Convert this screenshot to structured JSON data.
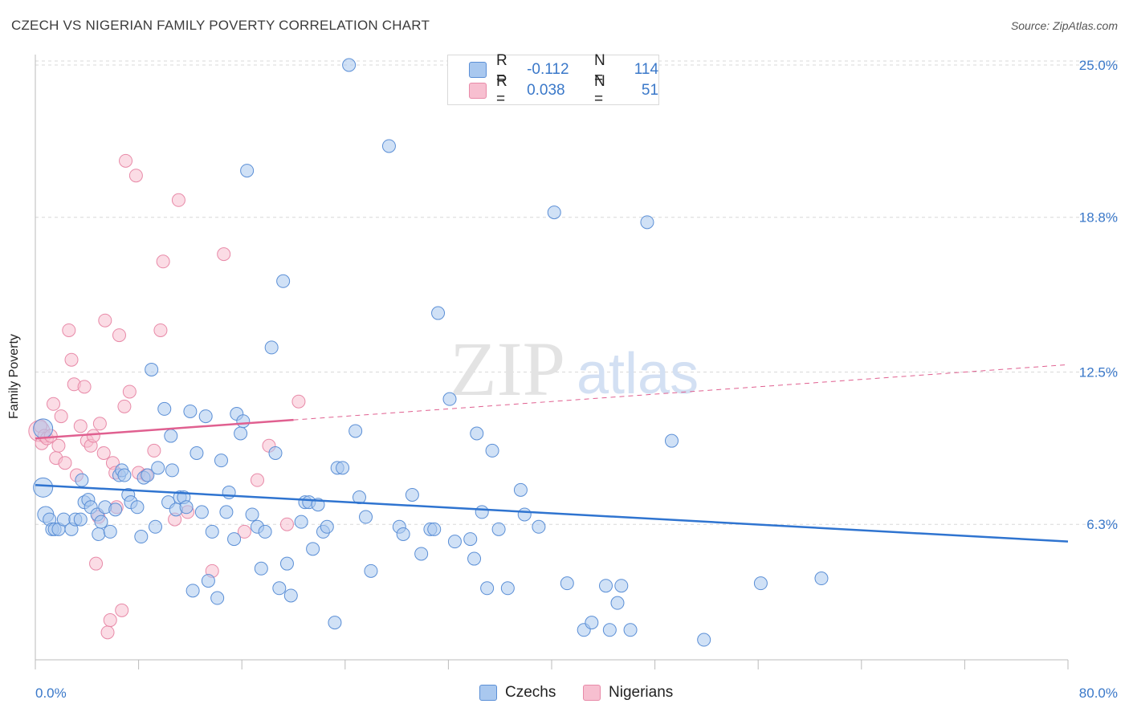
{
  "title": "CZECH VS NIGERIAN FAMILY POVERTY CORRELATION CHART",
  "source": "Source: ZipAtlas.com",
  "watermark": {
    "zip": "ZIP",
    "atlas": "atlas"
  },
  "legend": {
    "rows": [
      {
        "r_label": "R =",
        "r_value": "-0.112",
        "n_label": "N =",
        "n_value": "114"
      },
      {
        "r_label": "R =",
        "r_value": "0.038",
        "n_label": "N =",
        "n_value": "51"
      }
    ]
  },
  "bottom_legend": {
    "czechs": "Czechs",
    "nigerians": "Nigerians"
  },
  "colors": {
    "czech_fill": "#a9c8ef",
    "czech_stroke": "#5b8fd6",
    "czech_line": "#2f74d0",
    "nigerian_fill": "#f7bfd0",
    "nigerian_stroke": "#e88aa8",
    "nigerian_line": "#e06090",
    "axis_text": "#3a78c9",
    "grid": "#d9d9d9"
  },
  "chart_data": {
    "type": "scatter",
    "title": "CZECH VS NIGERIAN FAMILY POVERTY CORRELATION CHART",
    "xlabel": "",
    "ylabel": "Family Poverty",
    "xlim": [
      0,
      80
    ],
    "ylim": [
      0,
      26
    ],
    "x_tick_labels": [
      "0.0%",
      "80.0%"
    ],
    "y_ticks": [
      6.3,
      12.5,
      18.8,
      25.0
    ],
    "y_tick_labels": [
      "6.3%",
      "12.5%",
      "18.8%",
      "25.0%"
    ],
    "grid": true,
    "legend_position": "top-center",
    "series": [
      {
        "name": "Czechs",
        "trend": {
          "x": [
            0,
            80
          ],
          "y": [
            7.9,
            5.6
          ],
          "solid_until": 80
        },
        "points": [
          [
            0.6,
            10.2
          ],
          [
            0.6,
            7.8
          ],
          [
            0.8,
            6.7
          ],
          [
            1.1,
            6.5
          ],
          [
            1.3,
            6.1
          ],
          [
            1.5,
            6.1
          ],
          [
            1.8,
            6.1
          ],
          [
            2.2,
            6.5
          ],
          [
            2.8,
            6.1
          ],
          [
            3.1,
            6.5
          ],
          [
            3.5,
            6.5
          ],
          [
            3.6,
            8.1
          ],
          [
            3.8,
            7.2
          ],
          [
            4.1,
            7.3
          ],
          [
            4.3,
            7.0
          ],
          [
            4.8,
            6.7
          ],
          [
            4.9,
            5.9
          ],
          [
            5.1,
            6.4
          ],
          [
            5.4,
            7.0
          ],
          [
            5.8,
            6.0
          ],
          [
            6.2,
            6.9
          ],
          [
            6.5,
            8.3
          ],
          [
            6.7,
            8.5
          ],
          [
            6.9,
            8.3
          ],
          [
            7.2,
            7.5
          ],
          [
            7.4,
            7.2
          ],
          [
            7.9,
            7.0
          ],
          [
            8.2,
            5.8
          ],
          [
            8.4,
            8.2
          ],
          [
            8.7,
            8.3
          ],
          [
            9.0,
            12.6
          ],
          [
            9.3,
            6.2
          ],
          [
            9.5,
            8.6
          ],
          [
            10.0,
            11.0
          ],
          [
            10.3,
            7.2
          ],
          [
            10.5,
            9.9
          ],
          [
            10.6,
            8.5
          ],
          [
            10.9,
            6.9
          ],
          [
            11.2,
            7.4
          ],
          [
            11.5,
            7.4
          ],
          [
            11.7,
            7.0
          ],
          [
            12.0,
            10.9
          ],
          [
            12.2,
            3.6
          ],
          [
            12.5,
            9.2
          ],
          [
            12.9,
            6.8
          ],
          [
            13.2,
            10.7
          ],
          [
            13.4,
            4.0
          ],
          [
            13.7,
            6.0
          ],
          [
            14.1,
            3.3
          ],
          [
            14.4,
            8.9
          ],
          [
            14.8,
            6.8
          ],
          [
            15.0,
            7.6
          ],
          [
            15.4,
            5.7
          ],
          [
            15.6,
            10.8
          ],
          [
            15.9,
            10.0
          ],
          [
            16.1,
            10.5
          ],
          [
            16.4,
            20.7
          ],
          [
            16.8,
            6.7
          ],
          [
            17.2,
            6.2
          ],
          [
            17.5,
            4.5
          ],
          [
            17.8,
            6.0
          ],
          [
            18.3,
            13.5
          ],
          [
            18.6,
            9.2
          ],
          [
            18.9,
            3.7
          ],
          [
            19.2,
            16.2
          ],
          [
            19.5,
            4.7
          ],
          [
            19.8,
            3.4
          ],
          [
            20.6,
            6.4
          ],
          [
            20.9,
            7.2
          ],
          [
            21.2,
            7.2
          ],
          [
            21.5,
            5.3
          ],
          [
            21.9,
            7.1
          ],
          [
            22.3,
            6.0
          ],
          [
            22.6,
            6.2
          ],
          [
            23.2,
            2.3
          ],
          [
            23.4,
            8.6
          ],
          [
            23.8,
            8.6
          ],
          [
            24.3,
            25.0
          ],
          [
            24.8,
            10.1
          ],
          [
            25.1,
            7.4
          ],
          [
            25.6,
            6.6
          ],
          [
            26.0,
            4.4
          ],
          [
            27.4,
            21.7
          ],
          [
            28.2,
            6.2
          ],
          [
            28.5,
            5.9
          ],
          [
            29.2,
            7.5
          ],
          [
            29.9,
            5.1
          ],
          [
            30.6,
            6.1
          ],
          [
            30.9,
            6.1
          ],
          [
            31.2,
            14.9
          ],
          [
            32.1,
            11.4
          ],
          [
            32.5,
            5.6
          ],
          [
            33.7,
            5.7
          ],
          [
            34.0,
            4.9
          ],
          [
            34.2,
            10.0
          ],
          [
            34.6,
            6.8
          ],
          [
            35.0,
            3.7
          ],
          [
            35.4,
            9.3
          ],
          [
            35.9,
            6.1
          ],
          [
            36.6,
            3.7
          ],
          [
            37.6,
            7.7
          ],
          [
            37.9,
            6.7
          ],
          [
            39.0,
            6.2
          ],
          [
            40.2,
            19.0
          ],
          [
            41.2,
            3.9
          ],
          [
            42.5,
            2.0
          ],
          [
            43.1,
            2.3
          ],
          [
            44.2,
            3.8
          ],
          [
            44.5,
            2.0
          ],
          [
            45.1,
            3.1
          ],
          [
            45.4,
            3.8
          ],
          [
            46.1,
            2.0
          ],
          [
            47.4,
            18.6
          ],
          [
            49.3,
            9.7
          ],
          [
            51.8,
            1.6
          ],
          [
            56.2,
            3.9
          ],
          [
            60.9,
            4.1
          ]
        ]
      },
      {
        "name": "Nigerians",
        "trend": {
          "x": [
            0,
            80
          ],
          "y": [
            9.8,
            12.8
          ],
          "solid_until": 20
        },
        "points": [
          [
            0.3,
            10.1
          ],
          [
            0.4,
            10.3
          ],
          [
            0.5,
            9.6
          ],
          [
            0.7,
            9.9
          ],
          [
            0.9,
            9.8
          ],
          [
            1.2,
            9.9
          ],
          [
            1.4,
            11.2
          ],
          [
            1.6,
            9.0
          ],
          [
            1.8,
            9.5
          ],
          [
            2.0,
            10.7
          ],
          [
            2.3,
            8.8
          ],
          [
            2.6,
            14.2
          ],
          [
            2.8,
            13.0
          ],
          [
            3.0,
            12.0
          ],
          [
            3.2,
            8.3
          ],
          [
            3.5,
            10.3
          ],
          [
            3.8,
            11.9
          ],
          [
            4.0,
            9.7
          ],
          [
            4.3,
            9.5
          ],
          [
            4.5,
            9.9
          ],
          [
            4.7,
            4.7
          ],
          [
            4.9,
            6.6
          ],
          [
            5.0,
            10.4
          ],
          [
            5.3,
            9.2
          ],
          [
            5.4,
            14.6
          ],
          [
            5.6,
            1.9
          ],
          [
            5.8,
            2.4
          ],
          [
            6.0,
            8.8
          ],
          [
            6.2,
            8.4
          ],
          [
            6.3,
            7.0
          ],
          [
            6.5,
            14.0
          ],
          [
            6.7,
            2.8
          ],
          [
            6.9,
            11.1
          ],
          [
            7.0,
            21.1
          ],
          [
            7.3,
            11.7
          ],
          [
            7.8,
            20.5
          ],
          [
            8.0,
            8.4
          ],
          [
            8.6,
            8.3
          ],
          [
            9.2,
            9.3
          ],
          [
            9.7,
            14.2
          ],
          [
            9.9,
            17.0
          ],
          [
            10.8,
            6.5
          ],
          [
            11.1,
            19.5
          ],
          [
            11.8,
            6.8
          ],
          [
            13.7,
            4.4
          ],
          [
            14.6,
            17.3
          ],
          [
            16.2,
            6.0
          ],
          [
            17.2,
            8.1
          ],
          [
            18.1,
            9.5
          ],
          [
            19.5,
            6.3
          ],
          [
            20.4,
            11.3
          ]
        ]
      }
    ]
  }
}
